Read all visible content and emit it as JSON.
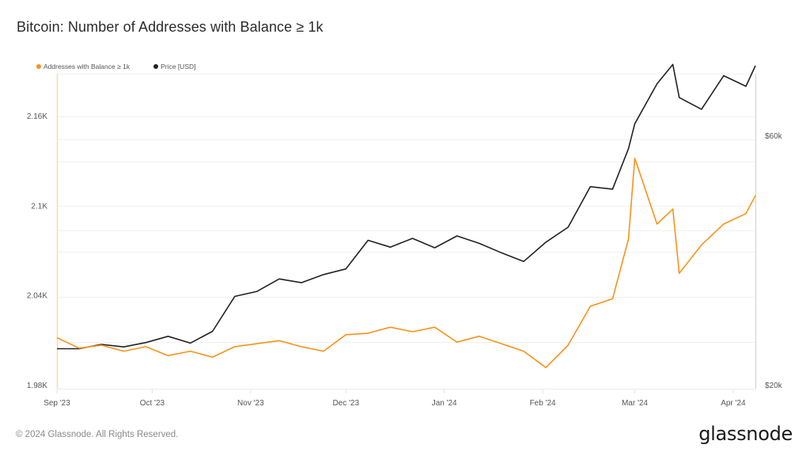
{
  "title": "Bitcoin: Number of Addresses with Balance ≥ 1k",
  "legend": [
    {
      "label": "Addresses with Balance ≥ 1k",
      "color": "#f7931a"
    },
    {
      "label": "Price [USD]",
      "color": "#222222"
    }
  ],
  "footer": {
    "copyright": "© 2024 Glassnode. All Rights Reserved.",
    "logo": "glassnode"
  },
  "chart_data": {
    "type": "line",
    "title": "Bitcoin: Number of Addresses with Balance ≥ 1k",
    "xlabel": "",
    "ylabel": "Addresses with Balance ≥ 1k",
    "y2label": "Price [USD]",
    "x_tick_labels": [
      "Sep '23",
      "Oct '23",
      "Nov '23",
      "Dec '23",
      "Jan '24",
      "Feb '24",
      "Mar '24",
      "Apr '24"
    ],
    "y_tick_labels": [
      "1.98K",
      "2.04K",
      "2.1K",
      "2.16K"
    ],
    "y2_tick_labels": [
      "$20k",
      "$60k"
    ],
    "ylim": [
      1978,
      2189
    ],
    "y2lim": [
      19500,
      84000
    ],
    "grid": true,
    "legend_position": "top-left",
    "x": [
      "2023-09-01",
      "2023-09-08",
      "2023-09-15",
      "2023-09-22",
      "2023-09-29",
      "2023-10-06",
      "2023-10-13",
      "2023-10-20",
      "2023-10-27",
      "2023-11-03",
      "2023-11-10",
      "2023-11-17",
      "2023-11-24",
      "2023-12-01",
      "2023-12-08",
      "2023-12-15",
      "2023-12-22",
      "2023-12-29",
      "2024-01-05",
      "2024-01-12",
      "2024-01-19",
      "2024-01-26",
      "2024-02-02",
      "2024-02-09",
      "2024-02-16",
      "2024-02-23",
      "2024-02-28",
      "2024-03-01",
      "2024-03-08",
      "2024-03-13",
      "2024-03-15",
      "2024-03-22",
      "2024-03-29",
      "2024-04-05",
      "2024-04-08"
    ],
    "series": [
      {
        "name": "Addresses with Balance ≥ 1k",
        "color": "#f7931a",
        "axis": "left",
        "values": [
          2012,
          2005,
          2007,
          2003,
          2006,
          2000,
          2003,
          1999,
          2006,
          2008,
          2010,
          2006,
          2003,
          2014,
          2015,
          2019,
          2016,
          2019,
          2009,
          2013,
          2008,
          2003,
          1992,
          2007,
          2033,
          2038,
          2078,
          2132,
          2088,
          2098,
          2055,
          2074,
          2088,
          2095,
          2107
        ]
      },
      {
        "name": "Price [USD]",
        "color": "#222222",
        "axis": "right",
        "values": [
          25900,
          25900,
          26600,
          26200,
          26900,
          27900,
          26800,
          28700,
          34300,
          35100,
          37100,
          36500,
          37800,
          38700,
          43300,
          42200,
          43600,
          42100,
          44000,
          42800,
          41300,
          39900,
          43000,
          45400,
          51900,
          51500,
          58000,
          62000,
          68400,
          71500,
          66200,
          64300,
          69700,
          68000,
          71300
        ]
      }
    ]
  }
}
